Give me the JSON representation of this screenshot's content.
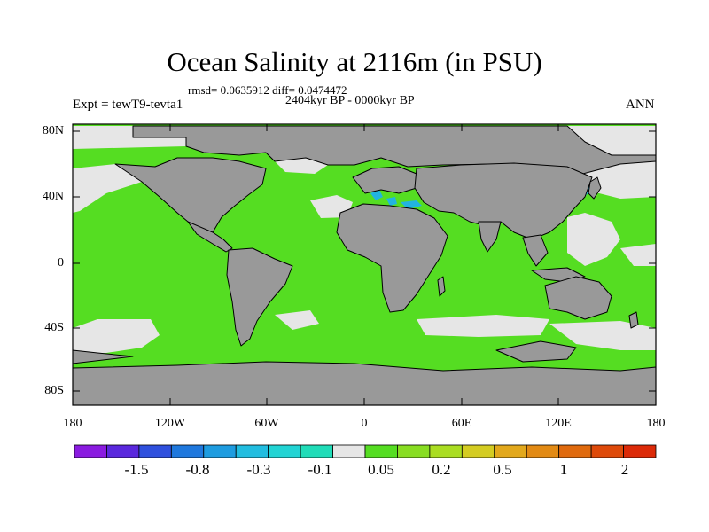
{
  "plot": {
    "title": "Ocean Salinity at 2116m (in PSU)",
    "stats": "rmsd= 0.0635912 diff= 0.0474472",
    "period": "2404kyr BP - 0000kyr BP",
    "experiment": "Expt = tewT9-tevta1",
    "season": "ANN"
  },
  "axes": {
    "y_ticks": [
      "80N",
      "40N",
      "0",
      "40S",
      "80S"
    ],
    "x_ticks": [
      "180",
      "120W",
      "60W",
      "0",
      "60E",
      "120E",
      "180"
    ]
  },
  "colorbar": {
    "labels": [
      "-1.5",
      "-0.8",
      "-0.3",
      "-0.1",
      "0.05",
      "0.2",
      "0.5",
      "1",
      "2"
    ],
    "colors": [
      "#8a1be0",
      "#5a28dd",
      "#2f50dd",
      "#1f78dd",
      "#1e9ce0",
      "#22bde0",
      "#22d4d4",
      "#20dcb8",
      "#e6e6e6",
      "#55dd22",
      "#88dd22",
      "#aadd22",
      "#d4cc22",
      "#e2a81c",
      "#e28a14",
      "#e06a0e",
      "#de4a0a",
      "#dc2a08"
    ]
  },
  "map_colors": {
    "land": "#999999",
    "ocean_main": "#55dd22",
    "ocean_near_zero": "#e6e6e6",
    "negative": "#22b4e0"
  }
}
